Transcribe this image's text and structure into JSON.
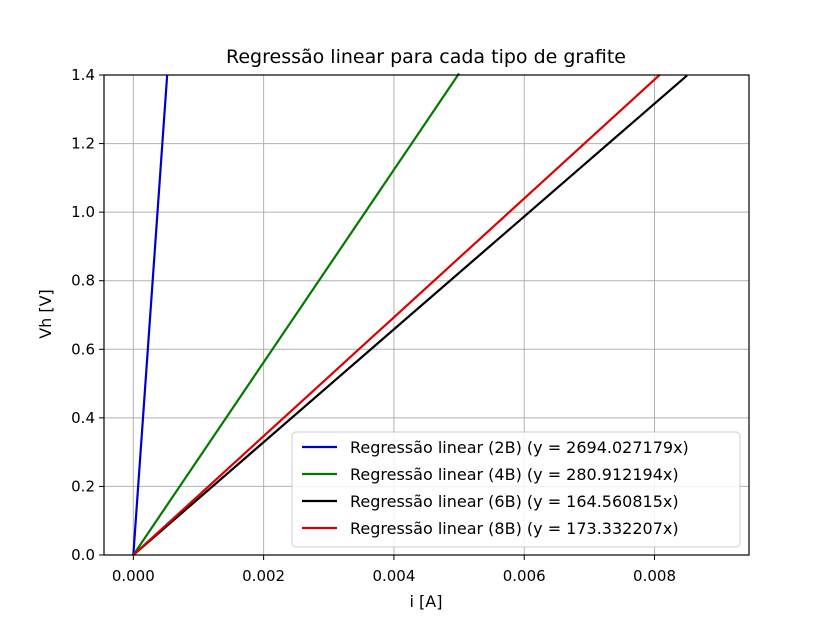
{
  "chart_data": {
    "type": "line",
    "title": "Regressão linear para cada tipo de grafite",
    "xlabel": "i [A]",
    "ylabel": "Vh [V]",
    "xlim": [
      -0.00045,
      0.00945
    ],
    "ylim": [
      0.0,
      1.4
    ],
    "xticks": [
      0.0,
      0.002,
      0.004,
      0.006,
      0.008
    ],
    "xtick_labels": [
      "0.000",
      "0.002",
      "0.004",
      "0.006",
      "0.008"
    ],
    "yticks": [
      0.0,
      0.2,
      0.4,
      0.6,
      0.8,
      1.0,
      1.2,
      1.4
    ],
    "ytick_labels": [
      "0.0",
      "0.2",
      "0.4",
      "0.6",
      "0.8",
      "1.0",
      "1.2",
      "1.4"
    ],
    "grid": true,
    "legend_position": "bottom-right",
    "series": [
      {
        "name": "Regressão linear (2B) (y = 2694.027179x)",
        "slope": 2694.027179,
        "x": [
          0.0,
          0.00052
        ],
        "y": [
          0.0,
          1.401
        ],
        "color": "#0000cc"
      },
      {
        "name": "Regressão linear (4B) (y = 280.912194x)",
        "slope": 280.912194,
        "x": [
          0.0,
          0.005
        ],
        "y": [
          0.0,
          1.4046
        ],
        "color": "#007a00"
      },
      {
        "name": "Regressão linear (6B) (y = 164.560815x)",
        "slope": 164.560815,
        "x": [
          0.0,
          0.0085
        ],
        "y": [
          0.0,
          1.3988
        ],
        "color": "#000000"
      },
      {
        "name": "Regressão linear (8B) (y = 173.332207x)",
        "slope": 173.332207,
        "x": [
          0.0,
          0.00808
        ],
        "y": [
          0.0,
          1.4005
        ],
        "color": "#dd0000"
      }
    ]
  }
}
